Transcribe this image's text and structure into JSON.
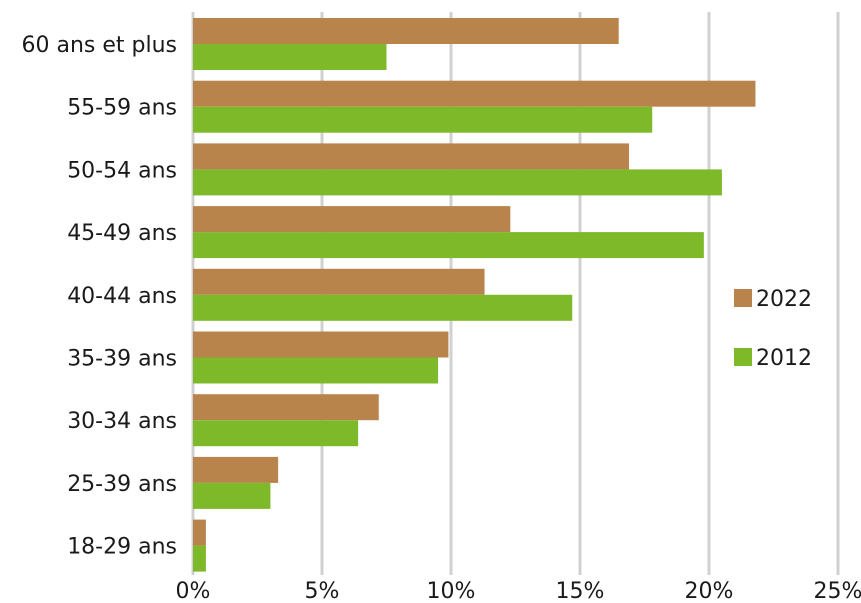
{
  "chart_data": {
    "type": "bar",
    "orientation": "horizontal",
    "title": "",
    "xlabel": "",
    "ylabel": "",
    "categories": [
      "60 ans et plus",
      "55-59 ans",
      "50-54 ans",
      "45-49 ans",
      "40-44 ans",
      "35-39 ans",
      "30-34 ans",
      "25-39 ans",
      "18-29 ans"
    ],
    "series": [
      {
        "name": "2022",
        "color": "#B8844C",
        "values": [
          16.5,
          21.8,
          16.9,
          12.3,
          11.3,
          9.9,
          7.2,
          3.3,
          0.5
        ]
      },
      {
        "name": "2012",
        "color": "#7DB929",
        "values": [
          7.5,
          17.8,
          20.5,
          19.8,
          14.7,
          9.5,
          6.4,
          3.0,
          0.5
        ]
      }
    ],
    "xlim": [
      0,
      25
    ],
    "xticks": [
      "0%",
      "5%",
      "10%",
      "15%",
      "20%",
      "25%"
    ],
    "grid": true,
    "legend_position": "right"
  }
}
